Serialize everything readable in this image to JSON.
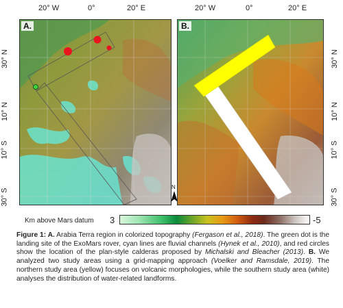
{
  "top_axis": {
    "panel_a": [
      "20° W",
      "0°",
      "20° E"
    ],
    "panel_b": [
      "20° W",
      "0°",
      "20° E"
    ]
  },
  "left_axis": [
    "30° N",
    "10° N",
    "10° S",
    "30° S"
  ],
  "right_axis": [
    "30° N",
    "10° N",
    "10° S",
    "30° S"
  ],
  "panel_a": {
    "letter": "A."
  },
  "panel_b": {
    "letter": "B."
  },
  "north_arrow": "N",
  "colorbar": {
    "title": "Km above Mars datum",
    "min": "3",
    "max": "-5"
  },
  "caption": {
    "t1": "Figure 1: ",
    "t2": "A.",
    "t3": " Arabia Terra region in colorized topography ",
    "t4": "(Fergason et al., 2018)",
    "t5": ". The green dot is the landing site of the ExoMars rover, cyan lines are fluvial channels ",
    "t6": "(Hynek et al., 2010)",
    "t7": ", and red circles show the location of the plan-style calderas proposed by ",
    "t8": "Michalski and Bleacher (2013)",
    "t9": ". ",
    "t10": "B.",
    "t11": " We analyzed two study areas using a grid-mapping approach ",
    "t12": "(Voelker and Ramsdale, 2019)",
    "t13": ". The northern study area (yellow) focuses on volcanic morphologies, while the southern study area (white) analyses the distribution of water-related landforms."
  },
  "colors": {
    "yellow_study_area": "#ffff00",
    "white_study_area": "#ffffff",
    "exomars_dot": "#3fd33f",
    "caldera": "#e8141e",
    "channels": "#66e8d6"
  }
}
